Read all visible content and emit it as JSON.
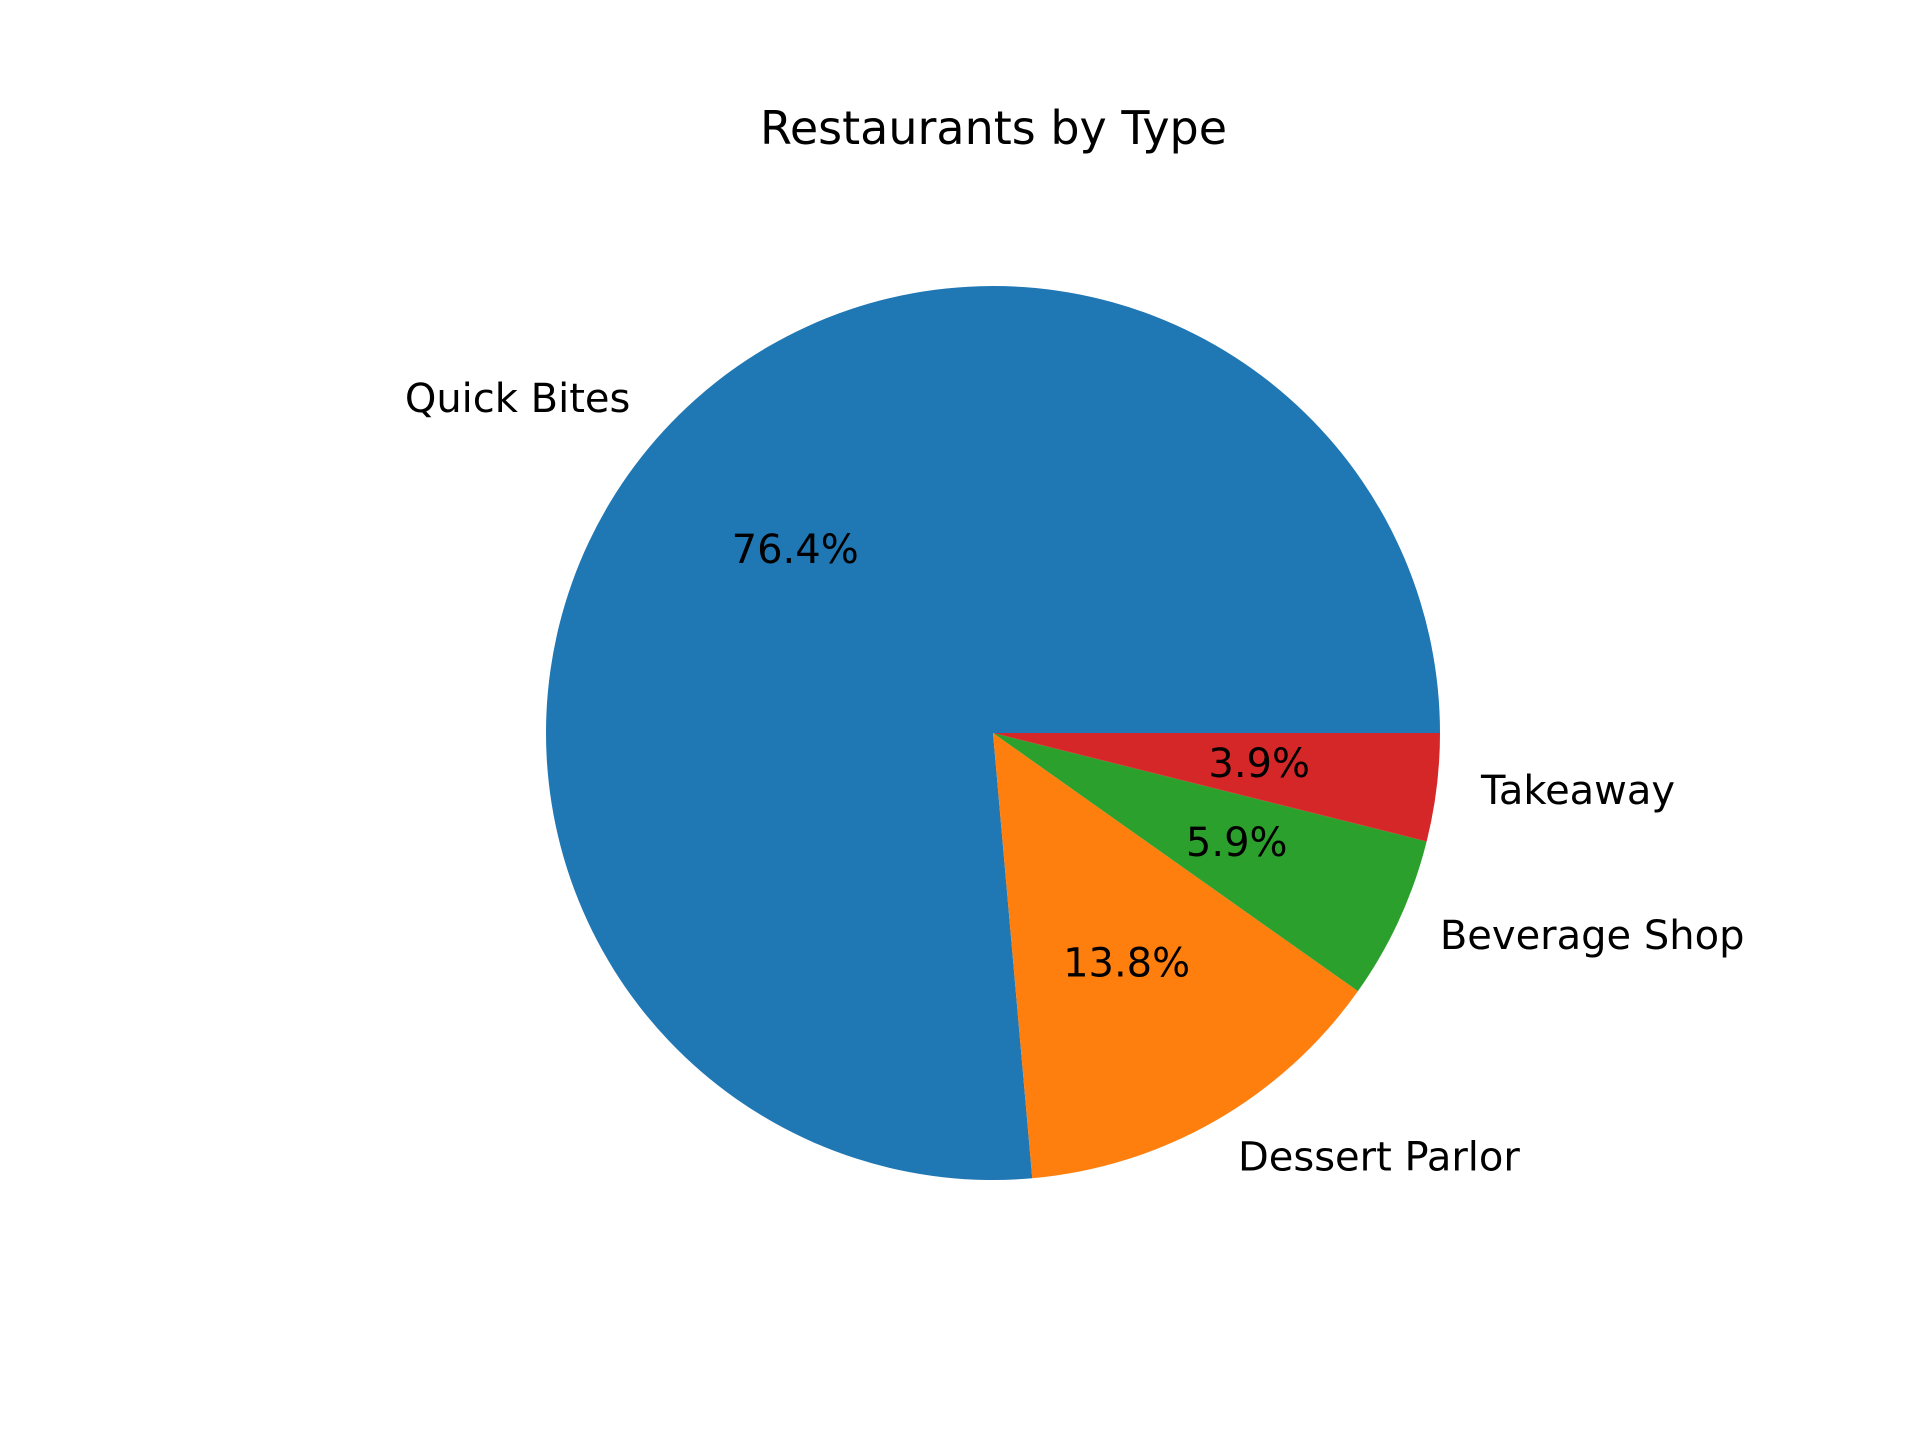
{
  "chart_data": {
    "type": "pie",
    "title": "Restaurants by Type",
    "slices": [
      {
        "label": "Quick Bites",
        "value": 76.4,
        "pct_label": "76.4%",
        "color": "#1f77b4"
      },
      {
        "label": "Dessert Parlor",
        "value": 13.8,
        "pct_label": "13.8%",
        "color": "#ff7f0e"
      },
      {
        "label": "Beverage Shop",
        "value": 5.9,
        "pct_label": "5.9%",
        "color": "#2ca02c"
      },
      {
        "label": "Takeaway",
        "value": 3.9,
        "pct_label": "3.9%",
        "color": "#d62728"
      }
    ],
    "start_angle": 0,
    "direction": "counterclockwise"
  }
}
